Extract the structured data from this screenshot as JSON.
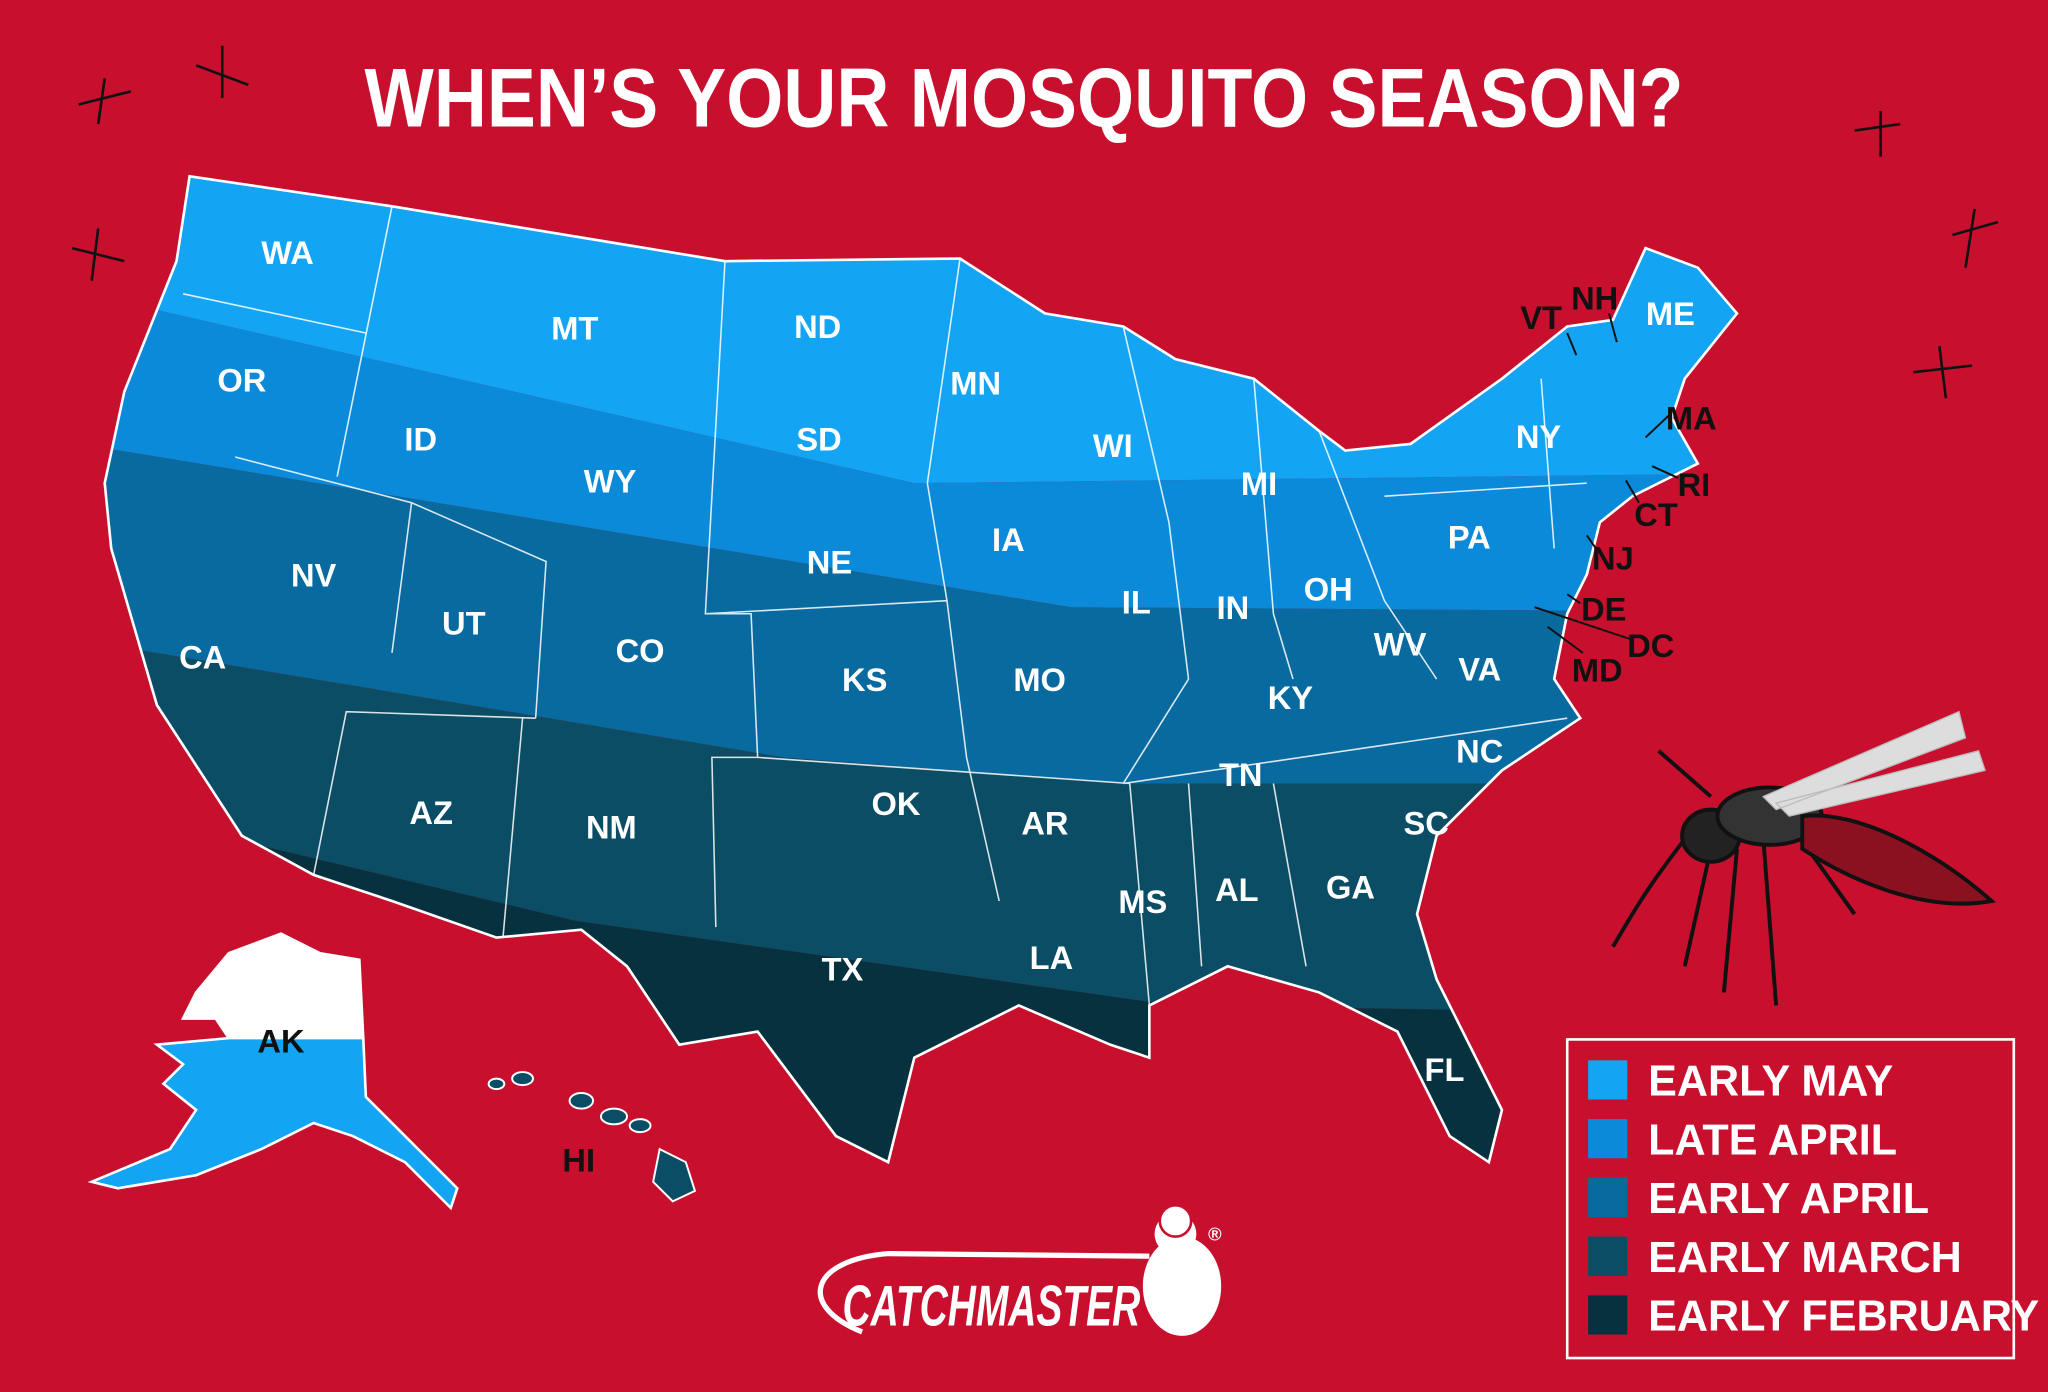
{
  "title": "WHEN’S YOUR MOSQUITO SEASON?",
  "legend": [
    {
      "label": "EARLY MAY",
      "color": "#14a4f4"
    },
    {
      "label": "LATE APRIL",
      "color": "#0b8ad9"
    },
    {
      "label": "EARLY APRIL",
      "color": "#086a9f"
    },
    {
      "label": "EARLY MARCH",
      "color": "#0c4d66"
    },
    {
      "label": "EARLY FEBRUARY",
      "color": "#06323f"
    }
  ],
  "states": [
    "WA",
    "OR",
    "CA",
    "NV",
    "ID",
    "MT",
    "WY",
    "UT",
    "AZ",
    "CO",
    "NM",
    "ND",
    "SD",
    "NE",
    "KS",
    "OK",
    "TX",
    "MN",
    "IA",
    "MO",
    "AR",
    "LA",
    "WI",
    "IL",
    "MS",
    "MI",
    "IN",
    "KY",
    "TN",
    "AL",
    "OH",
    "GA",
    "FL",
    "SC",
    "NC",
    "VA",
    "WV",
    "PA",
    "NY",
    "ME",
    "VT",
    "NH",
    "MA",
    "RI",
    "CT",
    "NJ",
    "DE",
    "DC",
    "MD",
    "AK",
    "HI"
  ],
  "brand": {
    "name": "CATCHMASTER",
    "mark": "®"
  }
}
